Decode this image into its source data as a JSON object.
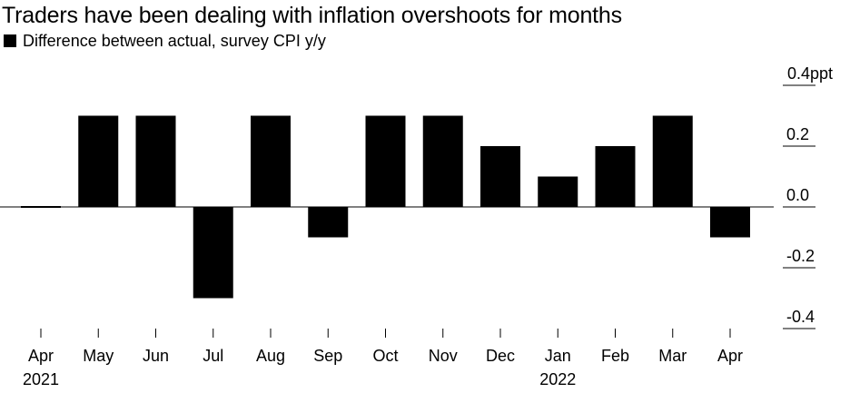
{
  "title": "Traders have been dealing with inflation overshoots for months",
  "legend": {
    "label": "Difference between actual, survey CPI y/y",
    "color": "#000000"
  },
  "chart_data": {
    "type": "bar",
    "title": "Traders have been dealing with inflation overshoots for months",
    "series": [
      {
        "name": "Difference between actual, survey CPI y/y",
        "values": [
          0.0,
          0.3,
          0.3,
          -0.3,
          0.3,
          -0.1,
          0.3,
          0.3,
          0.2,
          0.1,
          0.2,
          0.3,
          -0.1
        ]
      }
    ],
    "categories": [
      "Apr",
      "May",
      "Jun",
      "Jul",
      "Aug",
      "Sep",
      "Oct",
      "Nov",
      "Dec",
      "Jan",
      "Feb",
      "Mar",
      "Apr"
    ],
    "year_labels": [
      {
        "index": 0,
        "label": "2021"
      },
      {
        "index": 9,
        "label": "2022"
      }
    ],
    "y_ticks": [
      0.4,
      0.2,
      0.0,
      -0.2,
      -0.4
    ],
    "y_tick_labels": [
      "0.4ppt",
      "0.2",
      "0.0",
      "-0.2",
      "-0.4"
    ],
    "ylim": [
      -0.4,
      0.4
    ],
    "xlabel": "",
    "ylabel": "",
    "colors": {
      "bar": "#000000",
      "axis": "#000000"
    }
  }
}
